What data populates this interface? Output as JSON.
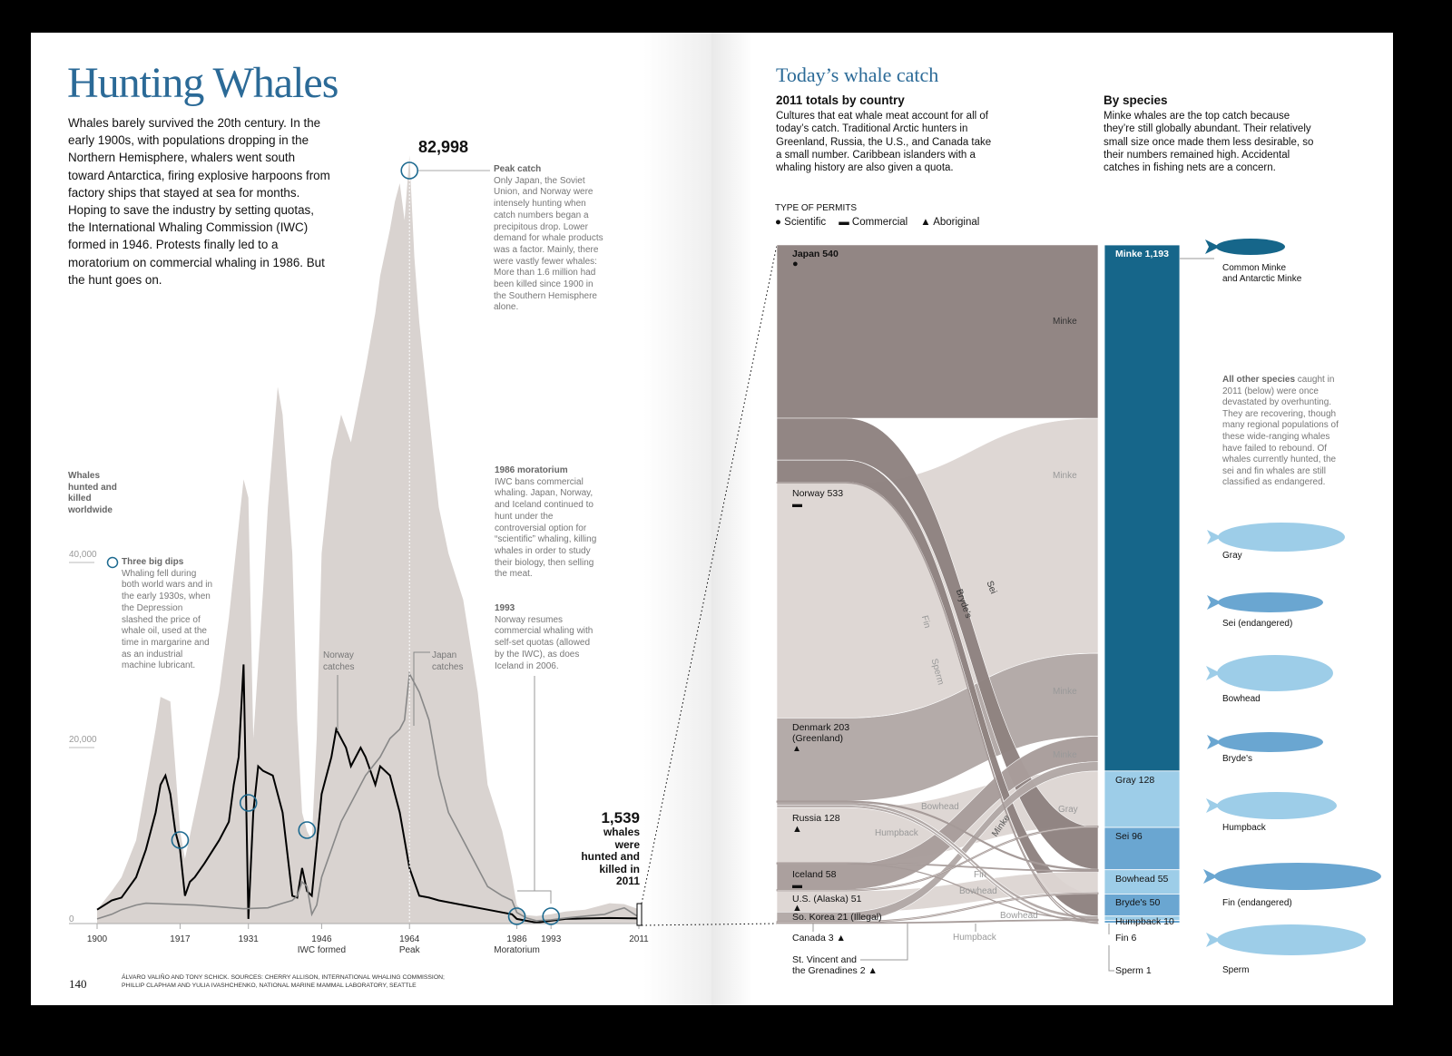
{
  "left": {
    "title": "Hunting Whales",
    "intro": "Whales barely survived the 20th century. In the early 1900s, with populations dropping in the Northern Hemisphere, whalers went south toward Antarctica, firing explosive harpoons from factory ships that stayed at sea for months. Hoping to save the industry by setting quotas, the International Whaling Commission (IWC) formed in 1946. Protests finally led to a moratorium on commercial whaling in 1986. But the hunt goes on.",
    "y_axis_label": "Whales hunted and killed worldwide",
    "peak_value": "82,998",
    "peak_title": "Peak catch",
    "peak_text": "Only Japan, the Soviet Union, and Norway were intensely hunting when catch numbers began a precipitous drop. Lower demand for whale products was a factor. Mainly, there were vastly fewer whales: More than 1.6 million had been killed since 1900 in the Southern Hemisphere alone.",
    "dips_title": "Three big dips",
    "dips_text": "Whaling fell during both world wars and in the early 1930s, when the Depression slashed the price of whale oil, used at the time in margarine and as an industrial machine lubricant.",
    "moratorium_title": "1986 moratorium",
    "moratorium_text": "IWC bans commercial whaling. Japan, Norway, and Iceland continued to hunt under the controversial option for “scientific” whaling, killing whales in order to study their biology, then selling the meat.",
    "y1993_title": "1993",
    "y1993_text": "Norway resumes commercial whaling with self-set quotas (allowed by the IWC), as does Iceland in 2006.",
    "norway_label": "Norway catches",
    "japan_label": "Japan catches",
    "total_2011_value": "1,539",
    "total_2011_text": "whales were hunted and killed in 2011",
    "page_number": "140",
    "credits": "ÁLVARO VALIÑO AND TONY SCHICK. SOURCES: CHERRY ALLISON, INTERNATIONAL WHALING COMMISSION; PHILLIP CLAPHAM AND YULIA IVASHCHENKO, NATIONAL MARINE MAMMAL LABORATORY, SEATTLE"
  },
  "chart_data": [
    {
      "type": "area",
      "ylabel": "Whales hunted and killed worldwide",
      "ylim": [
        0,
        85000
      ],
      "xlim": [
        1900,
        2011
      ],
      "y_ticks": [
        {
          "v": 0,
          "label": "0"
        },
        {
          "v": 20000,
          "label": "20,000"
        },
        {
          "v": 40000,
          "label": "40,000"
        }
      ],
      "x_ticks": [
        {
          "v": 1900,
          "label": "1900",
          "sub": ""
        },
        {
          "v": 1917,
          "label": "1917",
          "sub": ""
        },
        {
          "v": 1931,
          "label": "1931",
          "sub": ""
        },
        {
          "v": 1946,
          "label": "1946",
          "sub": "IWC formed"
        },
        {
          "v": 1964,
          "label": "1964",
          "sub": "Peak"
        },
        {
          "v": 1986,
          "label": "1986",
          "sub": "Moratorium"
        },
        {
          "v": 1993,
          "label": "1993",
          "sub": ""
        },
        {
          "v": 2011,
          "label": "2011",
          "sub": ""
        }
      ],
      "highlight_years": [
        1917,
        1931,
        1943,
        1964,
        1986,
        1993
      ],
      "series": [
        {
          "name": "",
          "kind": "area",
          "color": "#d9d3d0",
          "x": [
            1900,
            1903,
            1905,
            1908,
            1910,
            1912,
            1913,
            1915,
            1916,
            1917,
            1918,
            1920,
            1922,
            1925,
            1927,
            1928,
            1930,
            1931,
            1932,
            1934,
            1935,
            1937,
            1938,
            1940,
            1941,
            1942,
            1943,
            1944,
            1945,
            1946,
            1948,
            1950,
            1952,
            1955,
            1957,
            1958,
            1960,
            1961,
            1962,
            1963,
            1964,
            1965,
            1966,
            1968,
            1970,
            1972,
            1975,
            1978,
            1980,
            1983,
            1985,
            1986,
            1988,
            1990,
            1993,
            1996,
            2000,
            2005,
            2008,
            2011
          ],
          "y": [
            1500,
            3500,
            5000,
            9000,
            15000,
            21000,
            24500,
            24000,
            17000,
            10000,
            7000,
            12000,
            17000,
            25000,
            33000,
            38000,
            48000,
            46000,
            20000,
            36000,
            45000,
            58000,
            55000,
            40000,
            22000,
            12000,
            10000,
            9000,
            20000,
            40000,
            50000,
            55000,
            52000,
            60000,
            66000,
            70000,
            75000,
            78000,
            80000,
            76000,
            83000,
            72000,
            65000,
            55000,
            45000,
            40000,
            35000,
            25000,
            15000,
            10000,
            5000,
            2000,
            900,
            800,
            1000,
            1300,
            1500,
            2200,
            2100,
            1539
          ]
        },
        {
          "name": "Norway catches",
          "kind": "line",
          "color": "#000000",
          "x": [
            1900,
            1903,
            1905,
            1908,
            1910,
            1912,
            1913,
            1914,
            1915,
            1916,
            1917,
            1918,
            1919,
            1920,
            1922,
            1925,
            1927,
            1928,
            1929,
            1930,
            1931,
            1932,
            1933,
            1934,
            1936,
            1938,
            1940,
            1941,
            1942,
            1943,
            1944,
            1946,
            1948,
            1949,
            1951,
            1952,
            1954,
            1955,
            1957,
            1958,
            1960,
            1962,
            1964,
            1966,
            1968,
            1970,
            1975,
            1980,
            1985,
            1986,
            1990,
            1993,
            1996,
            2000,
            2005,
            2011
          ],
          "y": [
            1500,
            2500,
            2800,
            5000,
            8000,
            12000,
            15000,
            16000,
            14000,
            10000,
            8000,
            3000,
            4500,
            5000,
            6500,
            9000,
            11000,
            15000,
            18000,
            28000,
            500,
            12000,
            17000,
            16500,
            16000,
            12000,
            3000,
            2800,
            6000,
            3500,
            3000,
            14000,
            18000,
            21000,
            19000,
            17000,
            19000,
            18000,
            15000,
            17000,
            16000,
            12000,
            6000,
            3000,
            2800,
            2500,
            2000,
            1500,
            1000,
            500,
            100,
            300,
            500,
            550,
            600,
            550
          ]
        },
        {
          "name": "Japan catches",
          "kind": "line",
          "color": "#888888",
          "x": [
            1900,
            1903,
            1905,
            1908,
            1910,
            1915,
            1920,
            1925,
            1930,
            1935,
            1938,
            1940,
            1941,
            1942,
            1943,
            1944,
            1945,
            1946,
            1948,
            1950,
            1952,
            1955,
            1958,
            1960,
            1962,
            1963,
            1964,
            1966,
            1968,
            1970,
            1972,
            1975,
            1978,
            1980,
            1983,
            1985,
            1986,
            1988,
            1990,
            1993,
            1996,
            2000,
            2004,
            2006,
            2008,
            2011
          ],
          "y": [
            500,
            1000,
            1500,
            2000,
            2200,
            2100,
            2000,
            1800,
            1600,
            1700,
            2200,
            2500,
            3000,
            4500,
            4000,
            1000,
            2000,
            5000,
            8000,
            11000,
            13000,
            16000,
            18000,
            20000,
            21000,
            22000,
            27000,
            25000,
            22000,
            16000,
            12000,
            9000,
            6000,
            4000,
            3000,
            2500,
            1200,
            600,
            300,
            400,
            600,
            800,
            1000,
            1400,
            1700,
            700
          ]
        }
      ]
    },
    {
      "type": "sankey",
      "title": "Today's whale catch",
      "permit_types": {
        "title": "TYPE OF PERMITS",
        "items": [
          {
            "symbol": "●",
            "label": "Scientific"
          },
          {
            "symbol": "▬",
            "label": "Commercial"
          },
          {
            "symbol": "▲",
            "label": "Aboriginal"
          }
        ]
      },
      "countries": [
        {
          "name": "Japan",
          "label": "Japan 540",
          "value": 540,
          "permit": "●",
          "color": "#8e8280"
        },
        {
          "name": "Norway",
          "label": "Norway 533",
          "value": 533,
          "permit": "▬",
          "color": "#ddd6d3"
        },
        {
          "name": "Denmark",
          "label": "Denmark 203 (Greenland)",
          "value": 203,
          "permit": "▲",
          "color": "#b2a8a6"
        },
        {
          "name": "Russia",
          "label": "Russia 128",
          "value": 128,
          "permit": "▲",
          "color": "#ddd6d3"
        },
        {
          "name": "Iceland",
          "label": "Iceland 58",
          "value": 58,
          "permit": "▬",
          "color": "#a89d9b"
        },
        {
          "name": "U.S.",
          "label": "U.S. (Alaska) 51",
          "value": 51,
          "permit": "▲",
          "color": "#ddd6d3"
        },
        {
          "name": "So. Korea",
          "label": "So. Korea 21 (Illegal)",
          "value": 21,
          "permit": "",
          "color": "#b2a8a6"
        },
        {
          "name": "Canada",
          "label": "Canada 3",
          "value": 3,
          "permit": "▲",
          "color": "#ddd6d3"
        },
        {
          "name": "St. Vincent",
          "label": "St. Vincent and the Grenadines 2",
          "value": 2,
          "permit": "▲",
          "color": "#b2a8a6"
        }
      ],
      "species": [
        {
          "name": "Minke",
          "label": "Minke 1,193",
          "value": 1193,
          "color": "#16668a",
          "caption": "Common Minke and Antarctic Minke"
        },
        {
          "name": "Gray",
          "label": "Gray 128",
          "value": 128,
          "color": "#9dcde8",
          "caption": "Gray"
        },
        {
          "name": "Sei",
          "label": "Sei 96",
          "value": 96,
          "color": "#6aa6d1",
          "caption": "Sei (endangered)"
        },
        {
          "name": "Bowhead",
          "label": "Bowhead 55",
          "value": 55,
          "color": "#9dcde8",
          "caption": "Bowhead"
        },
        {
          "name": "Bryde's",
          "label": "Bryde's 50",
          "value": 50,
          "color": "#6aa6d1",
          "caption": "Bryde's"
        },
        {
          "name": "Humpback",
          "label": "Humpback 10",
          "value": 10,
          "color": "#9dcde8",
          "caption": "Humpback"
        },
        {
          "name": "Fin",
          "label": "Fin 6",
          "value": 6,
          "color": "#6aa6d1",
          "caption": "Fin (endangered)"
        },
        {
          "name": "Sperm",
          "label": "Sperm 1",
          "value": 1,
          "color": "#9dcde8",
          "caption": "Sperm"
        }
      ],
      "flows": [
        {
          "from": "Japan",
          "to": "Minke",
          "value": 393
        },
        {
          "from": "Japan",
          "to": "Sei",
          "value": 95
        },
        {
          "from": "Japan",
          "to": "Bryde's",
          "value": 50
        },
        {
          "from": "Japan",
          "to": "Fin",
          "value": 1
        },
        {
          "from": "Japan",
          "to": "Sperm",
          "value": 1
        },
        {
          "from": "Norway",
          "to": "Minke",
          "value": 533
        },
        {
          "from": "Denmark",
          "to": "Minke",
          "value": 188
        },
        {
          "from": "Denmark",
          "to": "Sei",
          "value": 1
        },
        {
          "from": "Denmark",
          "to": "Bowhead",
          "value": 2
        },
        {
          "from": "Denmark",
          "to": "Humpback",
          "value": 7
        },
        {
          "from": "Denmark",
          "to": "Fin",
          "value": 5
        },
        {
          "from": "Russia",
          "to": "Gray",
          "value": 125
        },
        {
          "from": "Russia",
          "to": "Bowhead",
          "value": 2
        },
        {
          "from": "Russia",
          "to": "Humpback",
          "value": 1
        },
        {
          "from": "Iceland",
          "to": "Minke",
          "value": 58
        },
        {
          "from": "U.S.",
          "to": "Gray",
          "value": 3
        },
        {
          "from": "U.S.",
          "to": "Bowhead",
          "value": 48
        },
        {
          "from": "So. Korea",
          "to": "Minke",
          "value": 21
        },
        {
          "from": "Canada",
          "to": "Bowhead",
          "value": 3
        },
        {
          "from": "St. Vincent",
          "to": "Humpback",
          "value": 2
        }
      ]
    }
  ],
  "right": {
    "title": "Today’s whale catch",
    "country_heading": "2011 totals by country",
    "country_text": "Cultures that eat whale meat account for all of today’s catch. Traditional Arctic hunters in Greenland, Russia, the U.S., and Canada take a small number. Caribbean islanders with a whaling history are also given a quota.",
    "species_heading": "By species",
    "species_text": "Minke whales are the top catch because they’re still globally abundant. Their relatively small size once made them less desirable, so their numbers remained high. Accidental catches in fishing nets are a concern.",
    "others_bold": "All other species",
    "others_text": " caught in 2011 (below) were once devastated by overhunting. They are recovering, though many regional populations of these wide-ranging whales have failed to rebound. Of whales currently hunted, the sei and fin whales are still classified as endangered.",
    "flow_labels": {
      "minke1": "Minke",
      "minke2": "Minke",
      "minke3": "Minke",
      "minke4": "Minke",
      "minke5": "Minke",
      "sei": "Sei",
      "brydes": "Bryde’s",
      "fin1": "Fin",
      "sperm": "Sperm",
      "bowhead1": "Bowhead",
      "humpback1": "Humpback",
      "gray": "Gray",
      "fin2": "Fin",
      "bowhead2": "Bowhead",
      "bowhead3": "Bowhead",
      "humpback2": "Humpback"
    }
  }
}
